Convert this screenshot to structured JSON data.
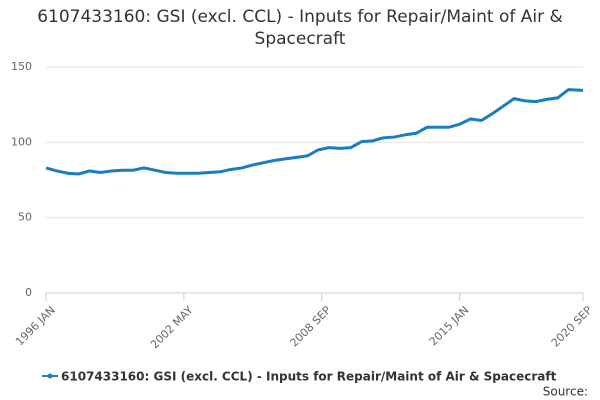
{
  "chart_data": {
    "type": "line",
    "title": "6107433160: GSI (excl. CCL) - Inputs for Repair/Maint of Air & Spacecraft",
    "source": "Source:",
    "x": [
      "1996-01",
      "1996-07",
      "1997-01",
      "1997-07",
      "1998-01",
      "1998-07",
      "1999-01",
      "1999-07",
      "2000-01",
      "2000-07",
      "2001-01",
      "2001-07",
      "2002-01",
      "2002-07",
      "2003-01",
      "2003-07",
      "2004-01",
      "2004-07",
      "2005-01",
      "2005-07",
      "2006-01",
      "2006-07",
      "2007-01",
      "2007-07",
      "2008-01",
      "2008-07",
      "2009-01",
      "2009-07",
      "2010-01",
      "2010-07",
      "2011-01",
      "2011-07",
      "2012-01",
      "2012-07",
      "2013-01",
      "2013-07",
      "2014-01",
      "2014-07",
      "2015-01",
      "2015-07",
      "2016-01",
      "2016-07",
      "2017-01",
      "2017-07",
      "2018-01",
      "2018-07",
      "2019-01",
      "2019-07",
      "2020-01",
      "2020-09"
    ],
    "series": [
      {
        "name": "6107433160: GSI (excl. CCL) - Inputs for Repair/Maint of Air & Spacecraft",
        "color": "#1a7dc0",
        "values": [
          83,
          81,
          79.5,
          79,
          81,
          80,
          81,
          81.5,
          81.5,
          83,
          81.5,
          80,
          79.5,
          79.5,
          79.5,
          80,
          80.5,
          82,
          83,
          85,
          86.5,
          88,
          89,
          90,
          91,
          95,
          96.5,
          96,
          96.5,
          100.5,
          101,
          103,
          103.5,
          105,
          106,
          110,
          110,
          110,
          112,
          115.5,
          114.5,
          119,
          124,
          129,
          127.5,
          127,
          128.5,
          129.5,
          135,
          134.5
        ]
      }
    ],
    "xlim": [
      "1996-01",
      "2020-09"
    ],
    "xticks": [
      {
        "value": "1996-01",
        "label": "1996 JAN"
      },
      {
        "value": "2002-05",
        "label": "2002 MAY"
      },
      {
        "value": "2008-09",
        "label": "2008 SEP"
      },
      {
        "value": "2015-01",
        "label": "2015 JAN"
      },
      {
        "value": "2020-09",
        "label": "2020 SEP"
      }
    ],
    "ylim": [
      0,
      150
    ],
    "yticks": [
      0,
      50,
      100,
      150
    ],
    "grid": true
  }
}
